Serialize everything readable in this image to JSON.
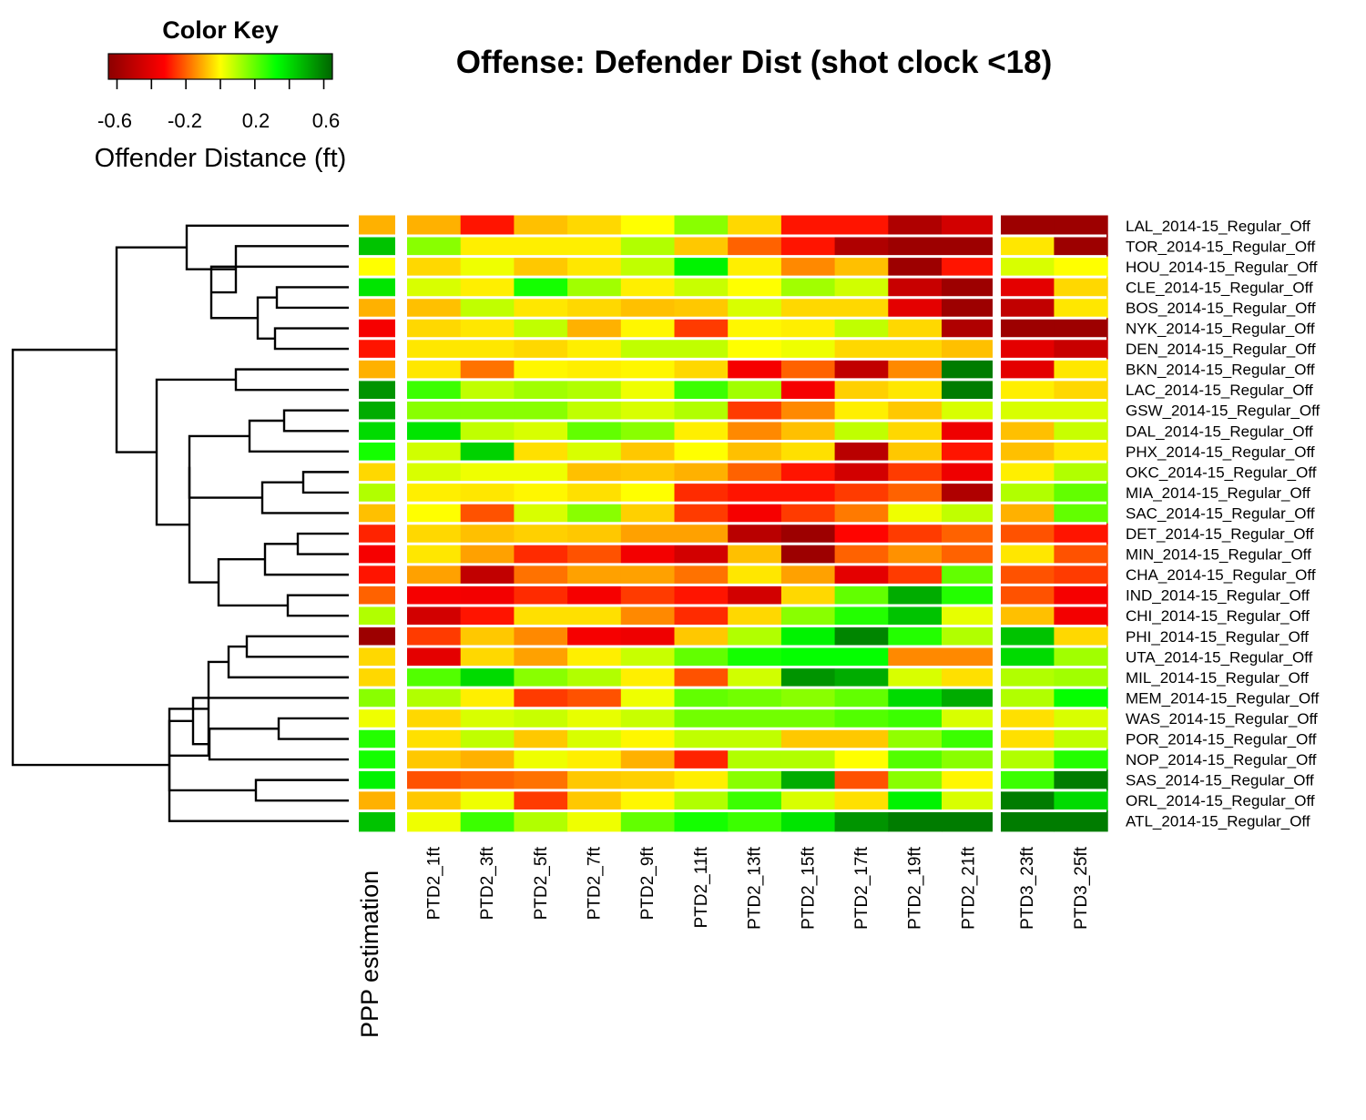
{
  "chart_data": {
    "type": "heatmap",
    "title": "Offense: Defender Dist (shot clock <18)",
    "color_key": {
      "title": "Color Key",
      "xlabel": "Offender Distance (ft)",
      "ticks": [
        "-0.6",
        "-0.2",
        "0.2",
        "0.6"
      ],
      "range": [
        -0.65,
        0.65
      ],
      "colormap": [
        "#8b0000",
        "#ff0000",
        "#ffff00",
        "#00ff00",
        "#006400"
      ]
    },
    "side_annotation_label": "PPP estimation",
    "columns": [
      "PTD2_1ft",
      "PTD2_3ft",
      "PTD2_5ft",
      "PTD2_7ft",
      "PTD2_9ft",
      "PTD2_11ft",
      "PTD2_13ft",
      "PTD2_15ft",
      "PTD2_17ft",
      "PTD2_19ft",
      "PTD2_21ft",
      "PTD3_23ft",
      "PTD3_25ft"
    ],
    "rows": [
      "LAL_2014-15_Regular_Off",
      "TOR_2014-15_Regular_Off",
      "HOU_2014-15_Regular_Off",
      "CLE_2014-15_Regular_Off",
      "BOS_2014-15_Regular_Off",
      "NYK_2014-15_Regular_Off",
      "DEN_2014-15_Regular_Off",
      "BKN_2014-15_Regular_Off",
      "LAC_2014-15_Regular_Off",
      "GSW_2014-15_Regular_Off",
      "DAL_2014-15_Regular_Off",
      "PHX_2014-15_Regular_Off",
      "OKC_2014-15_Regular_Off",
      "MIA_2014-15_Regular_Off",
      "SAC_2014-15_Regular_Off",
      "DET_2014-15_Regular_Off",
      "MIN_2014-15_Regular_Off",
      "CHA_2014-15_Regular_Off",
      "IND_2014-15_Regular_Off",
      "CHI_2014-15_Regular_Off",
      "PHI_2014-15_Regular_Off",
      "UTA_2014-15_Regular_Off",
      "MIL_2014-15_Regular_Off",
      "MEM_2014-15_Regular_Off",
      "WAS_2014-15_Regular_Off",
      "POR_2014-15_Regular_Off",
      "NOP_2014-15_Regular_Off",
      "SAS_2014-15_Regular_Off",
      "ORL_2014-15_Regular_Off",
      "ATL_2014-15_Regular_Off"
    ],
    "ppp_estimation": [
      -0.1,
      0.45,
      0.0,
      0.38,
      -0.1,
      -0.35,
      -0.3,
      -0.1,
      0.55,
      0.5,
      0.4,
      0.3,
      -0.05,
      0.1,
      -0.08,
      -0.28,
      -0.35,
      -0.3,
      -0.2,
      0.1,
      -0.6,
      -0.05,
      -0.05,
      0.15,
      0.02,
      0.28,
      0.3,
      0.35,
      -0.1,
      0.45
    ],
    "values": [
      [
        -0.1,
        -0.3,
        -0.08,
        -0.05,
        0.0,
        0.15,
        -0.05,
        -0.3,
        -0.3,
        -0.55,
        -0.45,
        -0.6,
        -0.6
      ],
      [
        0.15,
        -0.02,
        -0.02,
        -0.02,
        0.1,
        -0.07,
        -0.2,
        -0.3,
        -0.55,
        -0.6,
        -0.6,
        -0.03,
        -0.6
      ],
      [
        -0.05,
        0.02,
        -0.07,
        -0.03,
        0.08,
        0.35,
        -0.02,
        -0.15,
        -0.08,
        -0.6,
        -0.3,
        0.05,
        0.0
      ],
      [
        0.05,
        -0.02,
        0.3,
        0.12,
        -0.02,
        0.07,
        0.0,
        0.12,
        0.06,
        -0.48,
        -0.6,
        -0.4,
        -0.05
      ],
      [
        -0.08,
        0.08,
        -0.03,
        -0.05,
        -0.08,
        -0.07,
        0.05,
        -0.05,
        -0.05,
        -0.4,
        -0.6,
        -0.5,
        -0.03
      ],
      [
        -0.05,
        -0.03,
        0.08,
        -0.1,
        -0.01,
        -0.25,
        -0.01,
        -0.02,
        0.08,
        -0.05,
        -0.55,
        -0.6,
        -0.6
      ],
      [
        -0.03,
        -0.03,
        -0.05,
        -0.02,
        0.08,
        0.08,
        0.0,
        0.02,
        -0.05,
        -0.05,
        -0.08,
        -0.4,
        -0.48
      ],
      [
        -0.03,
        -0.18,
        -0.01,
        -0.02,
        -0.01,
        -0.05,
        -0.35,
        -0.2,
        -0.5,
        -0.15,
        0.6,
        -0.4,
        -0.03
      ],
      [
        0.25,
        0.08,
        0.12,
        0.1,
        0.02,
        0.25,
        0.12,
        -0.35,
        -0.06,
        -0.03,
        0.6,
        -0.02,
        -0.05
      ],
      [
        0.15,
        0.15,
        0.15,
        0.08,
        0.05,
        0.1,
        -0.25,
        -0.15,
        -0.02,
        -0.07,
        0.05,
        0.05,
        0.05
      ],
      [
        0.38,
        0.08,
        0.05,
        0.2,
        0.15,
        -0.02,
        -0.15,
        -0.08,
        0.08,
        -0.05,
        -0.37,
        -0.08,
        0.07
      ],
      [
        0.06,
        0.42,
        -0.04,
        0.05,
        -0.07,
        0.0,
        -0.08,
        -0.04,
        -0.52,
        -0.07,
        -0.3,
        -0.08,
        -0.03
      ],
      [
        0.05,
        0.02,
        0.02,
        -0.08,
        -0.07,
        -0.1,
        -0.2,
        -0.3,
        -0.45,
        -0.25,
        -0.37,
        -0.02,
        0.1
      ],
      [
        -0.02,
        -0.03,
        -0.01,
        -0.04,
        0.0,
        -0.27,
        -0.3,
        -0.3,
        -0.25,
        -0.2,
        -0.55,
        0.1,
        0.2
      ],
      [
        0.0,
        -0.22,
        0.05,
        0.15,
        -0.06,
        -0.25,
        -0.35,
        -0.25,
        -0.17,
        0.02,
        0.08,
        -0.1,
        0.2
      ],
      [
        -0.05,
        -0.08,
        -0.06,
        -0.07,
        -0.12,
        -0.12,
        -0.52,
        -0.6,
        -0.32,
        -0.25,
        -0.2,
        -0.22,
        -0.3
      ],
      [
        -0.03,
        -0.12,
        -0.27,
        -0.22,
        -0.36,
        -0.45,
        -0.08,
        -0.6,
        -0.2,
        -0.14,
        -0.2,
        -0.03,
        -0.22
      ],
      [
        -0.12,
        -0.5,
        -0.18,
        -0.12,
        -0.12,
        -0.18,
        -0.03,
        -0.12,
        -0.4,
        -0.25,
        0.2,
        -0.22,
        -0.25
      ],
      [
        -0.35,
        -0.36,
        -0.27,
        -0.35,
        -0.25,
        -0.3,
        -0.45,
        -0.05,
        0.2,
        0.5,
        0.28,
        -0.22,
        -0.35
      ],
      [
        -0.45,
        -0.3,
        -0.04,
        -0.04,
        -0.15,
        -0.27,
        -0.05,
        0.15,
        0.28,
        0.45,
        0.03,
        -0.08,
        -0.36
      ],
      [
        -0.25,
        -0.07,
        -0.15,
        -0.35,
        -0.37,
        -0.07,
        0.1,
        0.35,
        0.58,
        0.28,
        0.1,
        0.45,
        -0.05
      ],
      [
        -0.4,
        -0.05,
        -0.12,
        -0.02,
        0.07,
        0.2,
        0.3,
        0.32,
        0.32,
        -0.15,
        -0.15,
        0.4,
        0.12
      ],
      [
        0.22,
        0.4,
        0.15,
        0.1,
        -0.02,
        -0.22,
        0.06,
        0.55,
        0.5,
        0.05,
        -0.04,
        0.1,
        0.12
      ],
      [
        0.1,
        -0.02,
        -0.25,
        -0.22,
        0.02,
        0.2,
        0.18,
        0.15,
        0.2,
        0.4,
        0.5,
        0.1,
        0.32
      ],
      [
        -0.05,
        0.05,
        0.07,
        0.03,
        0.07,
        0.18,
        0.18,
        0.18,
        0.22,
        0.25,
        0.05,
        -0.04,
        0.05
      ],
      [
        -0.04,
        0.08,
        -0.07,
        0.05,
        -0.01,
        0.08,
        0.08,
        -0.07,
        -0.07,
        0.14,
        0.25,
        -0.04,
        0.08
      ],
      [
        -0.07,
        -0.1,
        0.02,
        -0.02,
        -0.1,
        -0.28,
        0.1,
        0.1,
        0.0,
        0.22,
        0.15,
        0.1,
        0.28
      ],
      [
        -0.22,
        -0.2,
        -0.18,
        -0.07,
        -0.06,
        -0.02,
        0.15,
        0.5,
        -0.22,
        0.15,
        -0.01,
        0.25,
        0.6
      ],
      [
        -0.07,
        0.02,
        -0.25,
        -0.07,
        -0.01,
        0.1,
        0.25,
        0.05,
        -0.04,
        0.35,
        0.05,
        0.6,
        0.4
      ],
      [
        0.02,
        0.25,
        0.1,
        0.02,
        0.2,
        0.3,
        0.25,
        0.38,
        0.55,
        0.6,
        0.6,
        0.6,
        0.6
      ]
    ]
  }
}
